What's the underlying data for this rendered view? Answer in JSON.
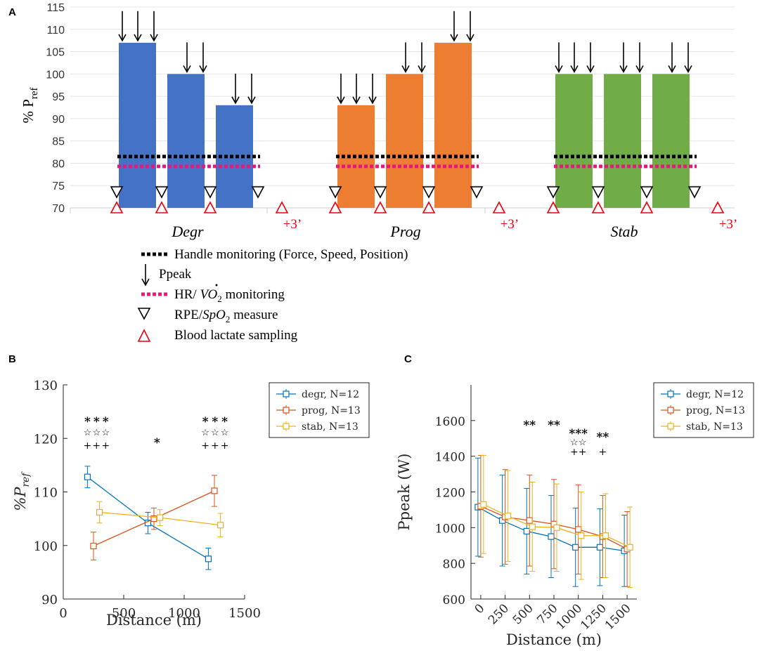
{
  "chart_data": [
    {
      "panel": "A",
      "type": "bar",
      "ylabel_main": "% P",
      "ylabel_sub": "ref",
      "ylim": [
        70,
        115
      ],
      "yticks": [
        70,
        75,
        80,
        85,
        90,
        95,
        100,
        105,
        110,
        115
      ],
      "handle_monitoring_level": 81.5,
      "hr_monitoring_level": 79.3,
      "groups": [
        {
          "name": "Degr",
          "color": "#4472c4",
          "values": [
            107,
            100,
            93
          ],
          "arrows": [
            3,
            2,
            2
          ]
        },
        {
          "name": "Prog",
          "color": "#ed7d31",
          "values": [
            93,
            100,
            107
          ],
          "arrows": [
            3,
            2,
            2
          ]
        },
        {
          "name": "Stab",
          "color": "#70ad47",
          "values": [
            100,
            100,
            100
          ],
          "arrows": [
            3,
            2,
            2
          ]
        }
      ],
      "recovery_label": "+3’",
      "legend": [
        {
          "marker": "black-dotted-line",
          "label": "Handle monitoring (Force, Speed, Position)"
        },
        {
          "marker": "down-arrow",
          "label": "Ppeak"
        },
        {
          "marker": "magenta-dotted-line",
          "label_prefix": "HR/ ",
          "label_var": "V",
          "label_sub": "2",
          "label_suffix": " monitoring"
        },
        {
          "marker": "black-triangle-down",
          "label_prefix": "RPE/",
          "label_var": "SpO",
          "label_sub": "2",
          "label_suffix": " measure"
        },
        {
          "marker": "red-triangle-up",
          "label": "Blood lactate sampling"
        }
      ]
    },
    {
      "panel": "B",
      "type": "line",
      "xlabel": "Distance (m)",
      "ylabel_main": "%P",
      "ylabel_sub": "ref",
      "xlim": [
        0,
        1500
      ],
      "ylim": [
        90,
        130
      ],
      "xticks": [
        0,
        500,
        1000,
        1500
      ],
      "yticks": [
        90,
        100,
        110,
        120,
        130
      ],
      "series": [
        {
          "name": "degr, N=12",
          "color": "#0072bd",
          "x": [
            200,
            700,
            1200
          ],
          "y": [
            112.8,
            104.2,
            97.5
          ],
          "err": [
            2.0,
            2.0,
            2.0
          ]
        },
        {
          "name": "prog, N=13",
          "color": "#d95319",
          "x": [
            250,
            750,
            1250
          ],
          "y": [
            99.9,
            105.0,
            110.2
          ],
          "err": [
            2.6,
            2.0,
            2.9
          ]
        },
        {
          "name": "stab, N=13",
          "color": "#edb120",
          "x": [
            300,
            800,
            1300
          ],
          "y": [
            106.2,
            105.2,
            103.8
          ],
          "err": [
            2.0,
            1.5,
            2.2
          ]
        }
      ],
      "annotations": [
        {
          "x": 200,
          "lines": [
            "*",
            "☆",
            "+"
          ]
        },
        {
          "x": 275,
          "lines": [
            "*",
            "☆",
            "+"
          ]
        },
        {
          "x": 350,
          "lines": [
            "*",
            "☆",
            "+"
          ]
        },
        {
          "x": 775,
          "lines": [
            "*"
          ]
        },
        {
          "x": 1175,
          "lines": [
            "*",
            "☆",
            "+"
          ]
        },
        {
          "x": 1255,
          "lines": [
            "*",
            "☆",
            "+"
          ]
        },
        {
          "x": 1335,
          "lines": [
            "*",
            "☆",
            "+"
          ]
        }
      ]
    },
    {
      "panel": "C",
      "type": "line",
      "xlabel": "Distance (m)",
      "ylabel": "Ppeak (W)",
      "xlim": [
        -100,
        1600
      ],
      "ylim": [
        600,
        1800
      ],
      "xticks": [
        0,
        250,
        500,
        750,
        1000,
        1250,
        1500
      ],
      "yticks": [
        600,
        800,
        1000,
        1200,
        1400,
        1600
      ],
      "series": [
        {
          "name": "degr, N=12",
          "color": "#0072bd",
          "x": [
            0,
            250,
            500,
            750,
            1000,
            1250,
            1500
          ],
          "y": [
            1115,
            1040,
            980,
            950,
            890,
            890,
            870
          ],
          "err": [
            275,
            255,
            240,
            230,
            220,
            215,
            200
          ]
        },
        {
          "name": "prog, N=13",
          "color": "#d95319",
          "x": [
            0,
            250,
            500,
            750,
            1000,
            1250,
            1500
          ],
          "y": [
            1120,
            1060,
            1040,
            1020,
            990,
            950,
            880
          ],
          "err": [
            285,
            265,
            255,
            250,
            250,
            230,
            210
          ]
        },
        {
          "name": "stab, N=13",
          "color": "#edb120",
          "x": [
            0,
            250,
            500,
            750,
            1000,
            1250,
            1500
          ],
          "y": [
            1130,
            1065,
            1005,
            1000,
            955,
            955,
            890
          ],
          "err": [
            275,
            255,
            250,
            245,
            245,
            235,
            225
          ]
        }
      ],
      "annotations": [
        {
          "x": 500,
          "lines": [
            "**"
          ]
        },
        {
          "x": 750,
          "lines": [
            "**"
          ]
        },
        {
          "x": 1000,
          "lines": [
            "***",
            "☆☆",
            "++"
          ]
        },
        {
          "x": 1250,
          "lines": [
            "**",
            "+"
          ]
        }
      ]
    }
  ],
  "panel_labels": {
    "a": "A",
    "b": "B",
    "c": "C"
  }
}
